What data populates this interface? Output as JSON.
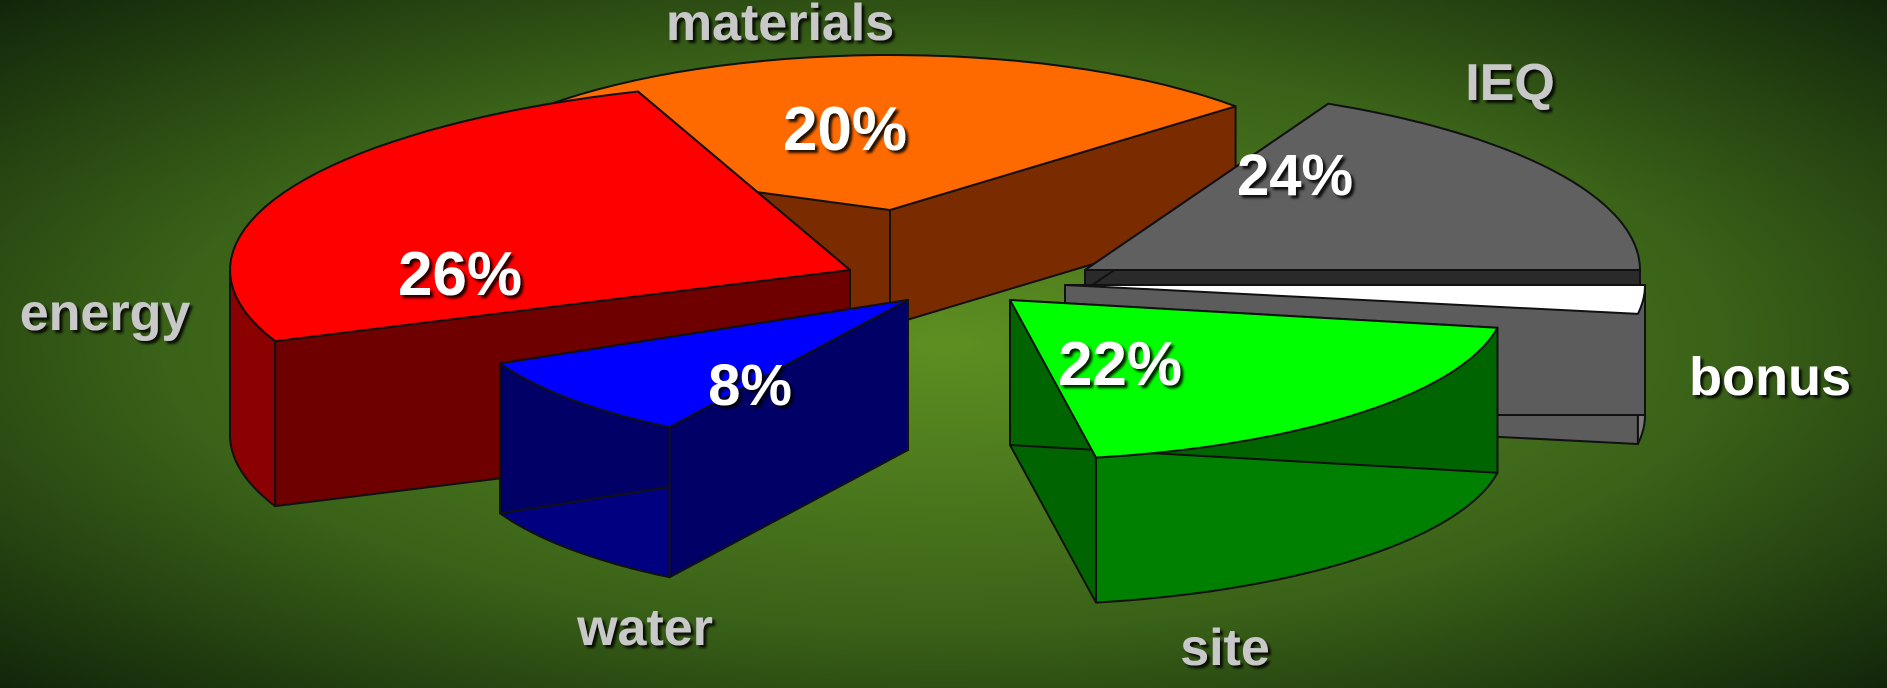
{
  "chart_data": {
    "type": "pie",
    "style": "3d-exploded",
    "labels": [
      "materials",
      "IEQ",
      "bonus",
      "site",
      "water",
      "energy"
    ],
    "values": [
      20,
      24,
      0,
      22,
      8,
      26
    ],
    "value_labels": [
      "20%",
      "24%",
      "",
      "22%",
      "8%",
      "26%"
    ],
    "colors": {
      "materials": "#ff6a00",
      "IEQ": "#606060",
      "bonus": "#ffffff",
      "site": "#00ff00",
      "water": "#0000ff",
      "energy": "#ff0000"
    },
    "label_colors": {
      "materials": "#c8c8c8",
      "IEQ": "#c8c8c8",
      "bonus": "#ffffff",
      "site": "#c8c8c8",
      "water": "#c8c8c8",
      "energy": "#c8c8c8"
    }
  }
}
